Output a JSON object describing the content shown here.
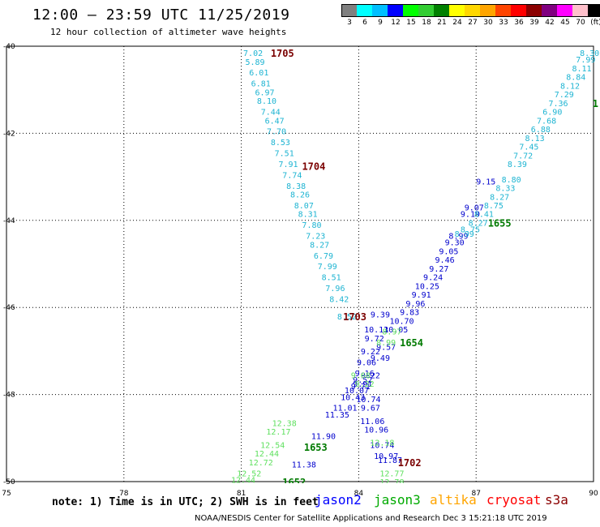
{
  "header": {
    "title": "12:00 — 23:59 UTC 11/25/2019",
    "subtitle": "12 hour collection of altimeter wave heights"
  },
  "colorbar": {
    "labels": [
      "3",
      "6",
      "9",
      "12",
      "15",
      "18",
      "21",
      "24",
      "27",
      "30",
      "33",
      "36",
      "39",
      "42",
      "45",
      "70",
      "(ft)"
    ],
    "colors": [
      "#808080",
      "#00ffff",
      "#00bfff",
      "#0000ff",
      "#00ff00",
      "#32cd32",
      "#008000",
      "#ffff00",
      "#ffd700",
      "#ffa500",
      "#ff4500",
      "#ff0000",
      "#8b0000",
      "#800080",
      "#ff00ff",
      "#ffc0cb",
      "#000000"
    ]
  },
  "chart_data": {
    "type": "scatter",
    "xlabel": "",
    "ylabel": "",
    "xlim": [
      75,
      90
    ],
    "ylim": [
      -50,
      -40
    ],
    "x_ticks": [
      75,
      78,
      81,
      84,
      87,
      90
    ],
    "y_ticks": [
      -40,
      -42,
      -44,
      -46,
      -48,
      -50
    ],
    "x_tick_labels": [
      "75",
      "78",
      "81",
      "84",
      "87",
      "90"
    ],
    "y_tick_labels": [
      "-40",
      "-42",
      "-44",
      "-46",
      "-48",
      "-50"
    ],
    "grid": true,
    "series": [
      {
        "name": "jason2",
        "color_key": "jason2",
        "points": [
          {
            "x": 84.55,
            "y": -46.15,
            "v": "9.39"
          },
          {
            "x": 84.45,
            "y": -46.5,
            "v": "10.13"
          },
          {
            "x": 84.4,
            "y": -46.7,
            "v": "9.72"
          },
          {
            "x": 84.3,
            "y": -47.0,
            "v": "9.22"
          },
          {
            "x": 84.2,
            "y": -47.25,
            "v": "9.06"
          },
          {
            "x": 84.15,
            "y": -47.5,
            "v": "9.16"
          },
          {
            "x": 84.1,
            "y": -47.65,
            "v": "9.52"
          },
          {
            "x": 84.05,
            "y": -47.8,
            "v": "9.71"
          },
          {
            "x": 83.95,
            "y": -47.9,
            "v": "10.07"
          },
          {
            "x": 83.85,
            "y": -48.05,
            "v": "10.43"
          },
          {
            "x": 83.65,
            "y": -48.3,
            "v": "11.01"
          },
          {
            "x": 83.45,
            "y": -48.45,
            "v": "11.35"
          },
          {
            "x": 83.1,
            "y": -48.95,
            "v": "11.90"
          },
          {
            "x": 82.6,
            "y": -49.6,
            "v": "11.38"
          },
          {
            "x": 84.1,
            "y": -47.75,
            "v": "9.91"
          },
          {
            "x": 84.25,
            "y": -48.1,
            "v": "10.74"
          },
          {
            "x": 84.3,
            "y": -48.3,
            "v": "9.67"
          },
          {
            "x": 84.35,
            "y": -48.6,
            "v": "11.06"
          },
          {
            "x": 84.45,
            "y": -48.8,
            "v": "10.96"
          },
          {
            "x": 84.6,
            "y": -49.15,
            "v": "10.74"
          },
          {
            "x": 84.7,
            "y": -49.4,
            "v": "10.97"
          },
          {
            "x": 84.8,
            "y": -49.5,
            "v": "11.87"
          },
          {
            "x": 86.55,
            "y": -44.35,
            "v": "8.99"
          },
          {
            "x": 86.45,
            "y": -44.5,
            "v": "9.30"
          },
          {
            "x": 86.3,
            "y": -44.7,
            "v": "9.05"
          },
          {
            "x": 86.2,
            "y": -44.9,
            "v": "9.46"
          },
          {
            "x": 86.05,
            "y": -45.1,
            "v": "9.27"
          },
          {
            "x": 85.9,
            "y": -45.3,
            "v": "9.24"
          },
          {
            "x": 85.75,
            "y": -45.5,
            "v": "10.25"
          },
          {
            "x": 85.6,
            "y": -45.7,
            "v": "9.91"
          },
          {
            "x": 85.45,
            "y": -45.9,
            "v": "9.96"
          },
          {
            "x": 85.3,
            "y": -46.1,
            "v": "9.83"
          },
          {
            "x": 85.1,
            "y": -46.3,
            "v": "10.70"
          },
          {
            "x": 84.95,
            "y": -46.5,
            "v": "10.05"
          },
          {
            "x": 84.7,
            "y": -46.9,
            "v": "9.57"
          },
          {
            "x": 84.55,
            "y": -47.15,
            "v": "9.49"
          },
          {
            "x": 84.3,
            "y": -47.55,
            "v": "9.22"
          },
          {
            "x": 86.95,
            "y": -43.7,
            "v": "9.07"
          },
          {
            "x": 86.85,
            "y": -43.85,
            "v": "9.19"
          },
          {
            "x": 87.25,
            "y": -43.1,
            "v": "9.15"
          }
        ]
      },
      {
        "name": "jason3",
        "color_key": "jason3",
        "points": [
          {
            "x": 82.1,
            "y": -48.65,
            "v": "12.38"
          },
          {
            "x": 81.95,
            "y": -48.85,
            "v": "12.17"
          },
          {
            "x": 81.8,
            "y": -49.15,
            "v": "12.54"
          },
          {
            "x": 81.65,
            "y": -49.35,
            "v": "12.44"
          },
          {
            "x": 81.5,
            "y": -49.55,
            "v": "12.72"
          },
          {
            "x": 81.2,
            "y": -49.8,
            "v": "12.52"
          },
          {
            "x": 81.05,
            "y": -49.95,
            "v": "12.44"
          },
          {
            "x": 84.05,
            "y": -47.55,
            "v": "9.68"
          },
          {
            "x": 84.15,
            "y": -47.75,
            "v": "9.22"
          },
          {
            "x": 84.85,
            "y": -46.55,
            "v": "8.97"
          },
          {
            "x": 84.7,
            "y": -46.8,
            "v": "8.99"
          },
          {
            "x": 84.6,
            "y": -49.1,
            "v": "12.18"
          },
          {
            "x": 84.85,
            "y": -49.8,
            "v": "12.77"
          },
          {
            "x": 84.85,
            "y": -50.0,
            "v": "12.78"
          }
        ]
      },
      {
        "name": "altika",
        "color_key": "altika",
        "points": [
          {
            "x": 81.3,
            "y": -40.15,
            "v": "7.02"
          },
          {
            "x": 81.35,
            "y": -40.35,
            "v": "5.89"
          },
          {
            "x": 81.45,
            "y": -40.6,
            "v": "6.01"
          },
          {
            "x": 81.5,
            "y": -40.85,
            "v": "6.81"
          },
          {
            "x": 81.6,
            "y": -41.05,
            "v": "6.97"
          },
          {
            "x": 81.65,
            "y": -41.25,
            "v": "8.10"
          },
          {
            "x": 81.75,
            "y": -41.5,
            "v": "7.44"
          },
          {
            "x": 81.85,
            "y": -41.7,
            "v": "6.47"
          },
          {
            "x": 81.9,
            "y": -41.95,
            "v": "7.70"
          },
          {
            "x": 82.0,
            "y": -42.2,
            "v": "8.53"
          },
          {
            "x": 82.1,
            "y": -42.45,
            "v": "7.51"
          },
          {
            "x": 82.2,
            "y": -42.7,
            "v": "7.91"
          },
          {
            "x": 82.3,
            "y": -42.95,
            "v": "7.74"
          },
          {
            "x": 82.4,
            "y": -43.2,
            "v": "8.38"
          },
          {
            "x": 82.5,
            "y": -43.4,
            "v": "8.26"
          },
          {
            "x": 82.6,
            "y": -43.65,
            "v": "8.07"
          },
          {
            "x": 82.7,
            "y": -43.85,
            "v": "8.31"
          },
          {
            "x": 82.8,
            "y": -44.1,
            "v": "7.80"
          },
          {
            "x": 82.9,
            "y": -44.35,
            "v": "7.23"
          },
          {
            "x": 83.0,
            "y": -44.55,
            "v": "8.27"
          },
          {
            "x": 83.1,
            "y": -44.8,
            "v": "6.79"
          },
          {
            "x": 83.2,
            "y": -45.05,
            "v": "7.99"
          },
          {
            "x": 83.3,
            "y": -45.3,
            "v": "8.51"
          },
          {
            "x": 83.4,
            "y": -45.55,
            "v": "7.96"
          },
          {
            "x": 83.5,
            "y": -45.8,
            "v": "8.42"
          },
          {
            "x": 83.7,
            "y": -46.2,
            "v": "8.52"
          },
          {
            "x": 89.9,
            "y": -40.15,
            "v": "8.30"
          },
          {
            "x": 89.8,
            "y": -40.3,
            "v": "7.99"
          },
          {
            "x": 89.7,
            "y": -40.5,
            "v": "8.11"
          },
          {
            "x": 89.55,
            "y": -40.7,
            "v": "8.84"
          },
          {
            "x": 89.4,
            "y": -40.9,
            "v": "8.12"
          },
          {
            "x": 89.25,
            "y": -41.1,
            "v": "7.29"
          },
          {
            "x": 89.1,
            "y": -41.3,
            "v": "7.36"
          },
          {
            "x": 88.95,
            "y": -41.5,
            "v": "6.90"
          },
          {
            "x": 88.8,
            "y": -41.7,
            "v": "7.68"
          },
          {
            "x": 88.65,
            "y": -41.9,
            "v": "6.88"
          },
          {
            "x": 88.5,
            "y": -42.1,
            "v": "8.13"
          },
          {
            "x": 88.35,
            "y": -42.3,
            "v": "7.45"
          },
          {
            "x": 88.2,
            "y": -42.5,
            "v": "7.72"
          },
          {
            "x": 88.05,
            "y": -42.7,
            "v": "8.39"
          },
          {
            "x": 87.9,
            "y": -43.05,
            "v": "8.80"
          },
          {
            "x": 87.75,
            "y": -43.25,
            "v": "8.33"
          },
          {
            "x": 87.6,
            "y": -43.45,
            "v": "8.27"
          },
          {
            "x": 87.45,
            "y": -43.65,
            "v": "8.75"
          },
          {
            "x": 87.2,
            "y": -43.85,
            "v": "8.41"
          },
          {
            "x": 87.05,
            "y": -44.05,
            "v": "8.27"
          },
          {
            "x": 86.85,
            "y": -44.2,
            "v": "8.75"
          },
          {
            "x": 86.7,
            "y": -44.3,
            "v": "8.99"
          }
        ]
      }
    ],
    "time_labels": [
      {
        "x": 82.05,
        "y": -40.15,
        "v": "1705",
        "color_key": "maroon"
      },
      {
        "x": 82.85,
        "y": -42.75,
        "v": "1704",
        "color_key": "maroon"
      },
      {
        "x": 83.9,
        "y": -46.2,
        "v": "1703",
        "color_key": "maroon"
      },
      {
        "x": 85.3,
        "y": -49.55,
        "v": "1702",
        "color_key": "maroon"
      },
      {
        "x": 87.6,
        "y": -44.05,
        "v": "1655",
        "color_key": "green"
      },
      {
        "x": 85.35,
        "y": -46.8,
        "v": "1654",
        "color_key": "green"
      },
      {
        "x": 82.9,
        "y": -49.2,
        "v": "1653",
        "color_key": "green"
      },
      {
        "x": 82.35,
        "y": -50.0,
        "v": "1652",
        "color_key": "green"
      },
      {
        "x": 90.05,
        "y": -41.3,
        "v": "1",
        "color_key": "green"
      }
    ]
  },
  "colors": {
    "jason2": "#0000cd",
    "jason3": "#5fe05f",
    "altika": "#1eb4d2",
    "maroon": "#7a0000",
    "green": "#007a00",
    "cryosat": "#ff0000",
    "s3a": "#8b0000",
    "altika_legend": "#ffa500",
    "jason2_legend": "#0000ff",
    "jason3_legend": "#00aa00"
  },
  "footer": {
    "note": "note: 1) Time is in UTC; 2) SWH is in feet",
    "sats": [
      "jason2",
      "jason3",
      "altika",
      "cryosat",
      "s3a"
    ],
    "credit": "NOAA/NESDIS Center for Satellite Applications and Research  Dec  3 15:21:18 UTC 2019"
  }
}
